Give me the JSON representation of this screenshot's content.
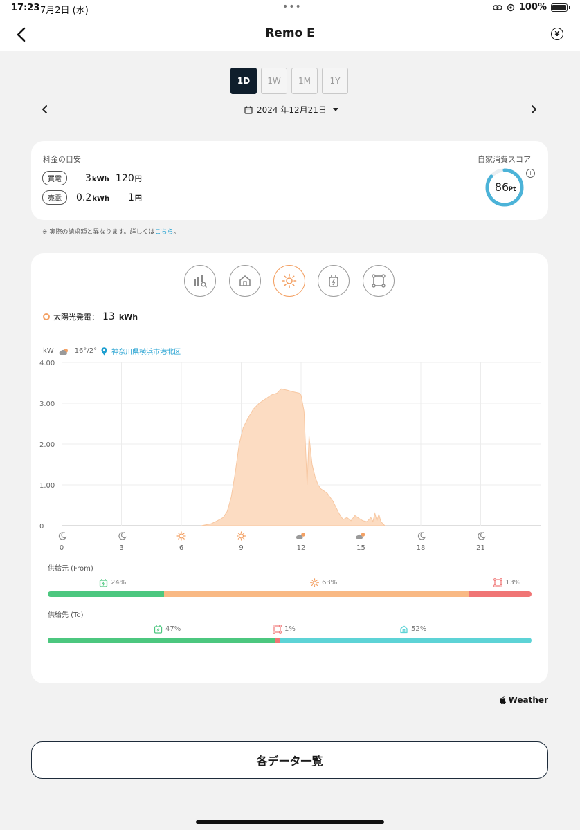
{
  "status_bar": {
    "time": "17:23",
    "date": "7月2日 (水)",
    "battery": "100%"
  },
  "nav": {
    "title": "Remo E"
  },
  "period_tabs": [
    "1D",
    "1W",
    "1M",
    "1Y"
  ],
  "date_picker": {
    "label": "2024 年12月21日"
  },
  "cost": {
    "title": "料金の目安",
    "buy_label": "買電",
    "buy_amount": "3",
    "buy_unit": "kWh",
    "buy_yen": "120",
    "yen_unit": "円",
    "sell_label": "売電",
    "sell_amount": "0.2",
    "sell_unit": "kWh",
    "sell_yen": "1",
    "score_title": "自家消費スコア",
    "score_value": "86",
    "score_unit": "Pt",
    "score_fraction": 0.86
  },
  "note": {
    "text": "※ 実際の請求額と異なります。詳しくは",
    "link": "こちら",
    "end": "。"
  },
  "mode_icons": [
    "chart-search-icon",
    "home-icon",
    "sun-icon",
    "plug-icon",
    "grid-icon"
  ],
  "legend": {
    "label": "太陽光発電：",
    "value": "13",
    "unit": "kWh"
  },
  "weather": {
    "unit": "kW",
    "temp": "16°/2°",
    "location": "神奈川県横浜市港北区"
  },
  "chart_data": {
    "type": "area",
    "xlabel": "",
    "ylabel": "kW",
    "xlim": [
      0,
      24
    ],
    "ylim": [
      0,
      4
    ],
    "x_ticks": [
      "0",
      "3",
      "6",
      "9",
      "12",
      "15",
      "18",
      "21"
    ],
    "y_ticks": [
      "4.00",
      "3.00",
      "2.00",
      "1.00",
      "0"
    ],
    "weather_icons": [
      "moon",
      "moon",
      "sun",
      "sun",
      "partly-cloudy",
      "partly-cloudy",
      "moon",
      "moon"
    ],
    "series": [
      {
        "x": [
          7.0,
          7.5,
          7.8,
          8.1,
          8.3,
          8.5,
          8.7,
          8.9,
          9.1,
          9.3,
          9.6,
          9.9,
          10.2,
          10.5,
          10.8,
          11.0,
          11.3,
          11.6,
          11.8,
          11.9,
          12.0,
          12.15,
          12.3,
          12.4,
          12.55,
          12.7,
          12.85,
          13.0,
          13.3,
          13.6,
          13.9,
          14.1,
          14.3,
          14.5,
          14.7,
          14.9,
          15.1,
          15.3,
          15.5,
          15.6,
          15.7,
          15.8,
          15.9,
          16.0,
          16.1,
          16.2
        ],
        "y": [
          0.0,
          0.05,
          0.12,
          0.2,
          0.35,
          0.7,
          1.3,
          2.0,
          2.4,
          2.6,
          2.85,
          3.0,
          3.1,
          3.2,
          3.25,
          3.35,
          3.32,
          3.28,
          3.26,
          3.25,
          3.2,
          2.8,
          1.0,
          2.2,
          1.5,
          1.2,
          1.0,
          0.9,
          0.8,
          0.6,
          0.3,
          0.15,
          0.2,
          0.12,
          0.25,
          0.18,
          0.12,
          0.1,
          0.2,
          0.1,
          0.3,
          0.12,
          0.28,
          0.1,
          0.05,
          0.0
        ]
      }
    ]
  },
  "supply_from": {
    "label": "供給元 (From)",
    "items": [
      {
        "icon": "battery-icon",
        "pct": "24%",
        "value": 24,
        "color": "#4cc77f"
      },
      {
        "icon": "sun-icon",
        "pct": "63%",
        "value": 63,
        "color": "#f9b984"
      },
      {
        "icon": "grid-icon",
        "pct": "13%",
        "value": 13,
        "color": "#f07575"
      }
    ]
  },
  "supply_to": {
    "label": "供給先 (To)",
    "items": [
      {
        "icon": "battery-icon",
        "pct": "47%",
        "value": 47,
        "color": "#4cc77f"
      },
      {
        "icon": "grid-icon",
        "pct": "1%",
        "value": 1,
        "color": "#f07575"
      },
      {
        "icon": "home-icon",
        "pct": "52%",
        "value": 52,
        "color": "#5dd3d6"
      }
    ]
  },
  "weather_credit": "Weather",
  "list_button": "各データ一覧",
  "colors": {
    "accent_dark": "#0f1e2c",
    "solar": "#f3a063",
    "solar_fill": "#fcdcc2",
    "score_ring": "#4cb3d8",
    "link": "#1e9fd0"
  }
}
